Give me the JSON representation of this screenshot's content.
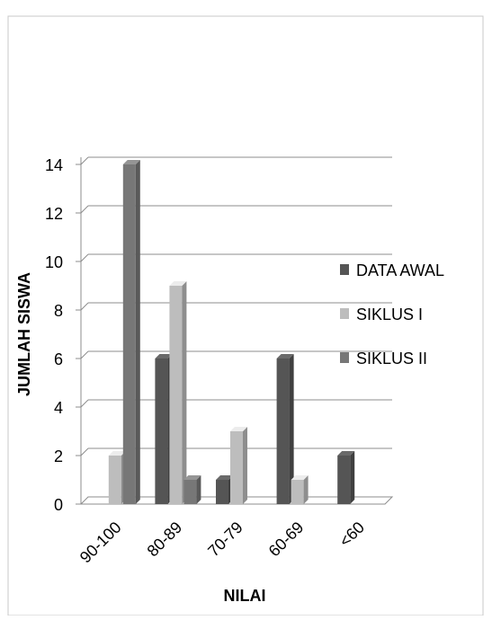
{
  "chart_data": {
    "type": "bar",
    "title": "",
    "xlabel": "NILAI",
    "ylabel": "JUMLAH SISWA",
    "categories": [
      "90-100",
      "80-89",
      "70-79",
      "60-69",
      "<60"
    ],
    "ylim": [
      0,
      14
    ],
    "yticks": [
      0,
      2,
      4,
      6,
      8,
      10,
      12,
      14
    ],
    "grid": true,
    "legend_position": "right",
    "series": [
      {
        "name": "DATA AWAL",
        "values": [
          0,
          6,
          1,
          6,
          2
        ],
        "color": "#555555"
      },
      {
        "name": "SIKLUS I",
        "values": [
          2,
          9,
          3,
          1,
          0
        ],
        "color": "#bdbdbd"
      },
      {
        "name": "SIKLUS II",
        "values": [
          14,
          1,
          0,
          0,
          0
        ],
        "color": "#777777"
      }
    ]
  }
}
